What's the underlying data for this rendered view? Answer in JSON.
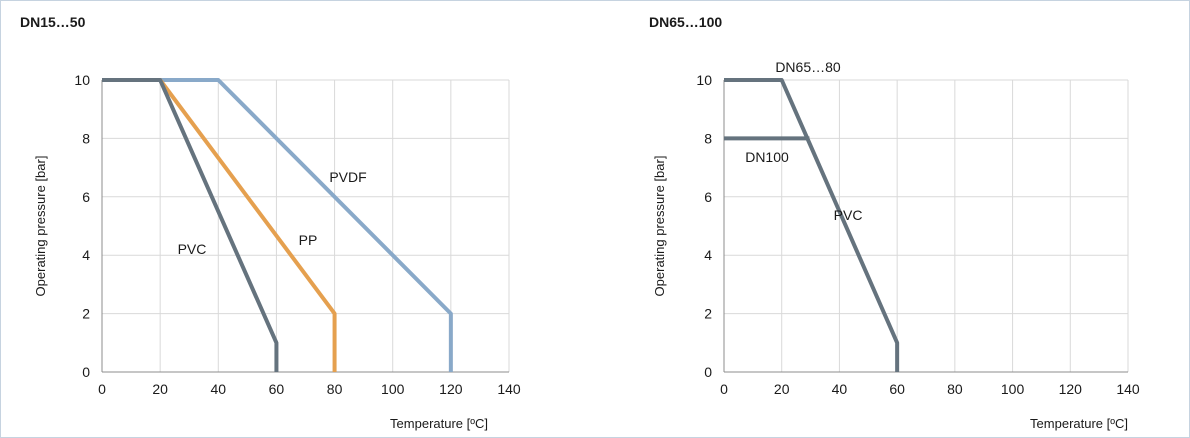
{
  "chart_data": [
    {
      "type": "line",
      "title": "DN15…50",
      "xlabel": "Temperature [ºC]",
      "ylabel": "Operating pressure [bar]",
      "xlim": [
        0,
        140
      ],
      "ylim": [
        0,
        10
      ],
      "xticks": [
        0,
        20,
        40,
        60,
        80,
        100,
        120,
        140
      ],
      "yticks": [
        0,
        2,
        4,
        6,
        8,
        10
      ],
      "grid": true,
      "series": [
        {
          "name": "PVDF",
          "color": "#89a9c9",
          "x": [
            0,
            40,
            120,
            120
          ],
          "y": [
            10,
            10,
            2,
            0
          ]
        },
        {
          "name": "PP",
          "color": "#e5a04f",
          "x": [
            0,
            20,
            80,
            80
          ],
          "y": [
            10,
            10,
            2,
            0
          ]
        },
        {
          "name": "PVC",
          "color": "#65737e",
          "x": [
            0,
            20,
            60,
            60
          ],
          "y": [
            10,
            10,
            1,
            0
          ]
        }
      ]
    },
    {
      "type": "line",
      "title": "DN65…100",
      "xlabel": "Temperature [ºC]",
      "ylabel": "Operating pressure [bar]",
      "xlim": [
        0,
        140
      ],
      "ylim": [
        0,
        10
      ],
      "xticks": [
        0,
        20,
        40,
        60,
        80,
        100,
        120,
        140
      ],
      "yticks": [
        0,
        2,
        4,
        6,
        8,
        10
      ],
      "grid": true,
      "series": [
        {
          "name": "DN65…80",
          "color": "#65737e",
          "x": [
            0,
            20,
            60,
            60
          ],
          "y": [
            10,
            10,
            1,
            0
          ]
        },
        {
          "name": "DN100",
          "color": "#65737e",
          "x": [
            0,
            29.6
          ],
          "y": [
            8,
            8
          ]
        }
      ],
      "annotations": [
        {
          "text": "PVC",
          "x": 43,
          "y": 5.2
        }
      ]
    }
  ]
}
